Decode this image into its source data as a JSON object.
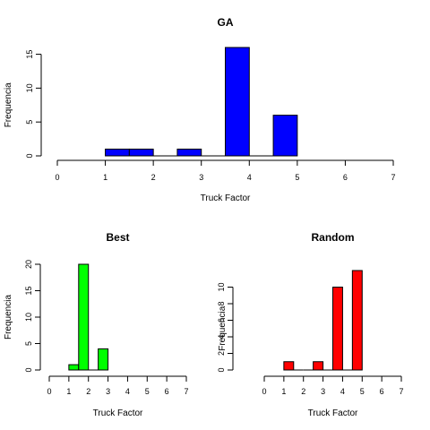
{
  "chart_data": [
    {
      "type": "bar",
      "title": "GA",
      "xlabel": "Truck Factor",
      "ylabel": "Frequencia",
      "color": "#0000ff",
      "bins": [
        {
          "start": 1.0,
          "end": 1.5,
          "count": 1
        },
        {
          "start": 1.5,
          "end": 2.0,
          "count": 1
        },
        {
          "start": 2.0,
          "end": 2.5,
          "count": 0
        },
        {
          "start": 2.5,
          "end": 3.0,
          "count": 1
        },
        {
          "start": 3.0,
          "end": 3.5,
          "count": 0
        },
        {
          "start": 3.5,
          "end": 4.0,
          "count": 16
        },
        {
          "start": 4.0,
          "end": 4.5,
          "count": 0
        },
        {
          "start": 4.5,
          "end": 5.0,
          "count": 6
        }
      ],
      "xlim": [
        0,
        7
      ],
      "ylim": [
        0,
        16
      ],
      "xticks": [
        "0",
        "1",
        "2",
        "3",
        "4",
        "5",
        "6",
        "7"
      ],
      "yticks": [
        "0",
        "5",
        "10",
        "15"
      ]
    },
    {
      "type": "bar",
      "title": "Best",
      "xlabel": "Truck Factor",
      "ylabel": "Frequencia",
      "color": "#00ff00",
      "bins": [
        {
          "start": 1.0,
          "end": 1.5,
          "count": 1
        },
        {
          "start": 1.5,
          "end": 2.0,
          "count": 20
        },
        {
          "start": 2.0,
          "end": 2.5,
          "count": 0
        },
        {
          "start": 2.5,
          "end": 3.0,
          "count": 4
        }
      ],
      "xlim": [
        0,
        7
      ],
      "ylim": [
        0,
        20
      ],
      "xticks": [
        "0",
        "1",
        "2",
        "3",
        "4",
        "5",
        "6",
        "7"
      ],
      "yticks": [
        "0",
        "5",
        "10",
        "15",
        "20"
      ]
    },
    {
      "type": "bar",
      "title": "Random",
      "xlabel": "Truck Factor",
      "ylabel": "Frequencia",
      "color": "#ff0000",
      "bins": [
        {
          "start": 1.0,
          "end": 1.5,
          "count": 1
        },
        {
          "start": 1.5,
          "end": 2.0,
          "count": 0
        },
        {
          "start": 2.0,
          "end": 2.5,
          "count": 0
        },
        {
          "start": 2.5,
          "end": 3.0,
          "count": 1
        },
        {
          "start": 3.0,
          "end": 3.5,
          "count": 0
        },
        {
          "start": 3.5,
          "end": 4.0,
          "count": 10
        },
        {
          "start": 4.0,
          "end": 4.5,
          "count": 0
        },
        {
          "start": 4.5,
          "end": 5.0,
          "count": 12
        }
      ],
      "xlim": [
        0,
        7
      ],
      "ylim": [
        0,
        12
      ],
      "xticks": [
        "0",
        "1",
        "2",
        "3",
        "4",
        "5",
        "6",
        "7"
      ],
      "yticks": [
        "0",
        "2",
        "4",
        "6",
        "8",
        "10"
      ]
    }
  ]
}
